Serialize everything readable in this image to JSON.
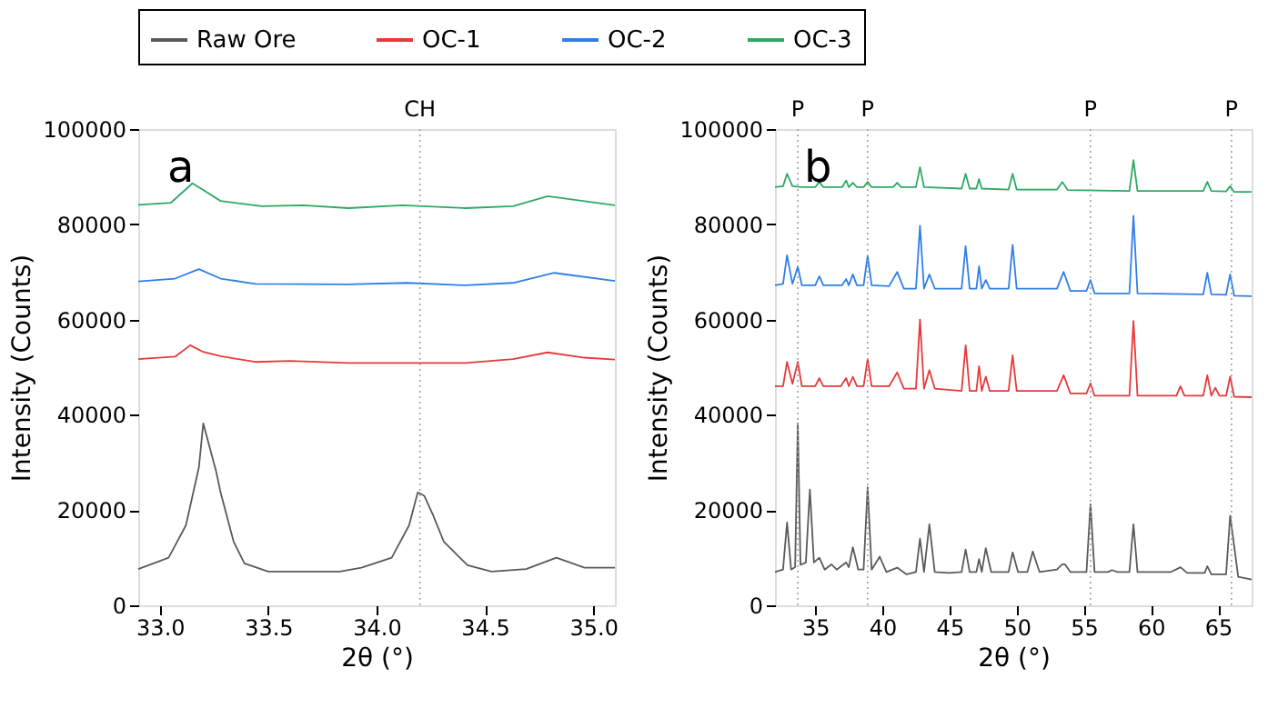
{
  "chart_data": [
    {
      "type": "line",
      "xlabel": "2θ (°)",
      "ylabel": "Intensity (Counts)",
      "xlim": [
        32.9,
        35.1
      ],
      "ylim": [
        0,
        100000
      ],
      "xticks": [
        {
          "value": 33,
          "label": "33.0"
        },
        33.5,
        {
          "value": 34,
          "label": "34.0"
        },
        34.5,
        {
          "value": 35,
          "label": "35.0"
        }
      ],
      "yticks": [
        0,
        20000,
        40000,
        60000,
        80000,
        100000
      ],
      "grid": false,
      "legend": "top",
      "line_style": "solid",
      "marker": "none",
      "annotations": [
        "a"
      ],
      "ref_lines": [
        {
          "axis": "x",
          "value": 34.2,
          "label": "CH",
          "color": "#a0a0a0",
          "line_style": "dotted"
        }
      ],
      "series": [
        {
          "name": "Raw Ore",
          "color": "#5a5a5a",
          "x": [
            32.9,
            33.04,
            33.12,
            33.18,
            33.2,
            33.26,
            33.28,
            33.34,
            33.39,
            33.5,
            33.83,
            33.93,
            34.07,
            34.15,
            34.19,
            34.22,
            34.26,
            34.31,
            34.42,
            34.53,
            34.69,
            34.83,
            34.96,
            35.1
          ],
          "values": [
            7600,
            10000,
            16800,
            29000,
            38200,
            28000,
            23700,
            13400,
            8800,
            7100,
            7100,
            7900,
            10000,
            16800,
            23700,
            23000,
            19000,
            13400,
            8400,
            7100,
            7600,
            10000,
            7900,
            7900
          ]
        },
        {
          "name": "OC-1",
          "color": "#e8393a",
          "x": [
            32.9,
            33.07,
            33.14,
            33.2,
            33.28,
            33.44,
            33.6,
            33.87,
            34.41,
            34.63,
            34.79,
            34.96,
            35.1
          ],
          "values": [
            51700,
            52200,
            54600,
            53200,
            52300,
            51100,
            51300,
            50900,
            50900,
            51700,
            53100,
            52000,
            51600
          ]
        },
        {
          "name": "OC-2",
          "color": "#2f7fe6",
          "x": [
            32.9,
            33.07,
            33.18,
            33.28,
            33.44,
            33.87,
            34.14,
            34.41,
            34.63,
            34.82,
            35.1
          ],
          "values": [
            68000,
            68600,
            70600,
            68600,
            67500,
            67400,
            67700,
            67200,
            67700,
            69800,
            68100
          ]
        },
        {
          "name": "OC-3",
          "color": "#2ea866",
          "x": [
            32.9,
            33.05,
            33.15,
            33.2,
            33.28,
            33.47,
            33.66,
            33.87,
            34.12,
            34.41,
            34.63,
            34.79,
            35.1
          ],
          "values": [
            84100,
            84500,
            88600,
            87200,
            84900,
            83800,
            84000,
            83400,
            84000,
            83400,
            83800,
            85900,
            84000
          ]
        }
      ]
    },
    {
      "type": "line",
      "xlabel": "2θ (°)",
      "ylabel": "Intensity (Counts)",
      "xlim": [
        32,
        67.5
      ],
      "ylim": [
        0,
        100000
      ],
      "xticks": [
        35,
        40,
        45,
        50,
        55,
        60,
        65
      ],
      "yticks": [
        0,
        20000,
        40000,
        60000,
        80000,
        100000
      ],
      "grid": false,
      "legend": "top",
      "line_style": "solid",
      "marker": "none",
      "annotations": [
        "b"
      ],
      "ref_lines": [
        {
          "axis": "x",
          "value": 33.7,
          "label": "P",
          "color": "#a0a0a0",
          "line_style": "dotted"
        },
        {
          "axis": "x",
          "value": 38.9,
          "label": "P",
          "color": "#a0a0a0",
          "line_style": "dotted"
        },
        {
          "axis": "x",
          "value": 55.5,
          "label": "P",
          "color": "#a0a0a0",
          "line_style": "dotted"
        },
        {
          "axis": "x",
          "value": 66.0,
          "label": "P",
          "color": "#a0a0a0",
          "line_style": "dotted"
        }
      ],
      "series": [
        {
          "name": "Raw Ore",
          "color": "#5a5a5a",
          "x": [
            32.0,
            32.6,
            32.9,
            33.2,
            33.5,
            33.7,
            33.9,
            34.3,
            34.6,
            34.9,
            35.3,
            35.7,
            36.2,
            36.6,
            37.3,
            37.5,
            37.8,
            38.2,
            38.6,
            38.9,
            39.2,
            39.8,
            40.3,
            41.1,
            41.8,
            42.5,
            42.8,
            43.1,
            43.5,
            43.9,
            45.0,
            45.9,
            46.2,
            46.5,
            47.0,
            47.2,
            47.4,
            47.7,
            48.1,
            49.4,
            49.7,
            50.1,
            50.8,
            51.2,
            51.7,
            53.0,
            53.4,
            53.6,
            54.0,
            55.2,
            55.5,
            55.8,
            56.8,
            57.1,
            57.5,
            58.4,
            58.7,
            59.0,
            61.5,
            62.2,
            62.7,
            64.0,
            64.2,
            64.5,
            65.6,
            65.9,
            66.2,
            66.5,
            67.5
          ],
          "values": [
            7000,
            7500,
            17400,
            7500,
            8000,
            38200,
            8500,
            9000,
            24300,
            9000,
            10000,
            7500,
            8600,
            7500,
            9000,
            8000,
            12200,
            7500,
            7500,
            24800,
            7500,
            10200,
            7000,
            7900,
            6500,
            7000,
            14000,
            7000,
            17000,
            7000,
            6800,
            7000,
            11700,
            7000,
            7000,
            9700,
            7000,
            12000,
            7000,
            7000,
            11100,
            7000,
            7000,
            11300,
            7000,
            7500,
            8600,
            8600,
            7000,
            7000,
            21200,
            7000,
            7000,
            7400,
            7000,
            7000,
            17000,
            7000,
            7000,
            8000,
            6800,
            6800,
            8200,
            6500,
            6500,
            18800,
            12500,
            6000,
            5400
          ]
        },
        {
          "name": "OC-1",
          "color": "#e8393a",
          "x": [
            32.0,
            32.6,
            32.9,
            33.3,
            33.7,
            34.0,
            35.0,
            35.3,
            35.6,
            36.9,
            37.3,
            37.5,
            37.8,
            38.1,
            38.6,
            38.9,
            39.2,
            40.5,
            41.1,
            41.6,
            42.5,
            42.8,
            43.1,
            43.5,
            43.9,
            45.9,
            46.2,
            46.5,
            47.0,
            47.2,
            47.4,
            47.7,
            48.0,
            49.4,
            49.7,
            50.0,
            53.0,
            53.5,
            54.0,
            55.2,
            55.5,
            55.8,
            58.4,
            58.7,
            59.0,
            61.9,
            62.2,
            62.5,
            63.9,
            64.2,
            64.5,
            64.8,
            65.1,
            65.6,
            65.9,
            66.2,
            67.5
          ],
          "values": [
            46000,
            46000,
            51100,
            46500,
            51100,
            46000,
            46000,
            47700,
            46000,
            46000,
            47700,
            46000,
            48000,
            46000,
            46000,
            51700,
            46000,
            46000,
            48900,
            45500,
            45500,
            60000,
            45500,
            49400,
            45500,
            45000,
            54600,
            45000,
            45000,
            50200,
            45000,
            48000,
            45000,
            45000,
            52500,
            45000,
            45000,
            48300,
            44500,
            44500,
            46600,
            44000,
            44000,
            59700,
            44000,
            44000,
            46000,
            44000,
            44000,
            48300,
            44000,
            45700,
            44000,
            44000,
            48000,
            43800,
            43700
          ]
        },
        {
          "name": "OC-2",
          "color": "#2f7fe6",
          "x": [
            32.0,
            32.6,
            32.9,
            33.3,
            33.7,
            34.0,
            35.0,
            35.3,
            35.6,
            37.0,
            37.3,
            37.5,
            37.8,
            38.1,
            38.6,
            38.9,
            39.2,
            40.5,
            41.1,
            41.6,
            42.5,
            42.8,
            43.1,
            43.5,
            43.9,
            45.9,
            46.2,
            46.5,
            47.0,
            47.2,
            47.4,
            47.7,
            48.0,
            49.4,
            49.7,
            50.0,
            53.0,
            53.5,
            54.0,
            55.2,
            55.5,
            55.8,
            58.4,
            58.7,
            59.0,
            63.9,
            64.2,
            64.5,
            65.6,
            65.9,
            66.2,
            67.5
          ],
          "values": [
            67200,
            67500,
            73500,
            67500,
            71100,
            67200,
            67200,
            69100,
            67200,
            67200,
            68500,
            67200,
            69500,
            67200,
            67200,
            73400,
            67200,
            67000,
            70000,
            66500,
            66500,
            79700,
            66500,
            69500,
            66500,
            66500,
            75400,
            66500,
            66500,
            71200,
            66500,
            68300,
            66500,
            66500,
            75700,
            66500,
            66500,
            70000,
            66000,
            66000,
            68300,
            65500,
            65500,
            81800,
            65500,
            65300,
            69800,
            65300,
            65200,
            69500,
            65000,
            64900
          ]
        },
        {
          "name": "OC-3",
          "color": "#2ea866",
          "x": [
            32.0,
            32.6,
            32.9,
            33.3,
            34.0,
            35.0,
            35.3,
            35.6,
            37.0,
            37.3,
            37.5,
            37.8,
            38.1,
            38.6,
            38.9,
            39.2,
            40.8,
            41.1,
            41.4,
            42.5,
            42.8,
            43.1,
            45.9,
            46.2,
            46.5,
            47.0,
            47.2,
            47.4,
            49.4,
            49.7,
            50.0,
            53.0,
            53.4,
            53.8,
            58.4,
            58.7,
            59.0,
            63.9,
            64.2,
            64.5,
            65.6,
            65.9,
            66.2,
            67.5
          ],
          "values": [
            87800,
            88000,
            90600,
            88000,
            87800,
            87800,
            88900,
            87800,
            87800,
            89200,
            87800,
            88700,
            87800,
            87800,
            88900,
            87800,
            87800,
            88700,
            87800,
            87800,
            92000,
            87800,
            87500,
            90600,
            87500,
            87500,
            89500,
            87500,
            87300,
            90600,
            87300,
            87300,
            88900,
            87200,
            87000,
            93500,
            87000,
            87000,
            88900,
            87000,
            86900,
            88000,
            86800,
            86800
          ]
        }
      ]
    }
  ]
}
